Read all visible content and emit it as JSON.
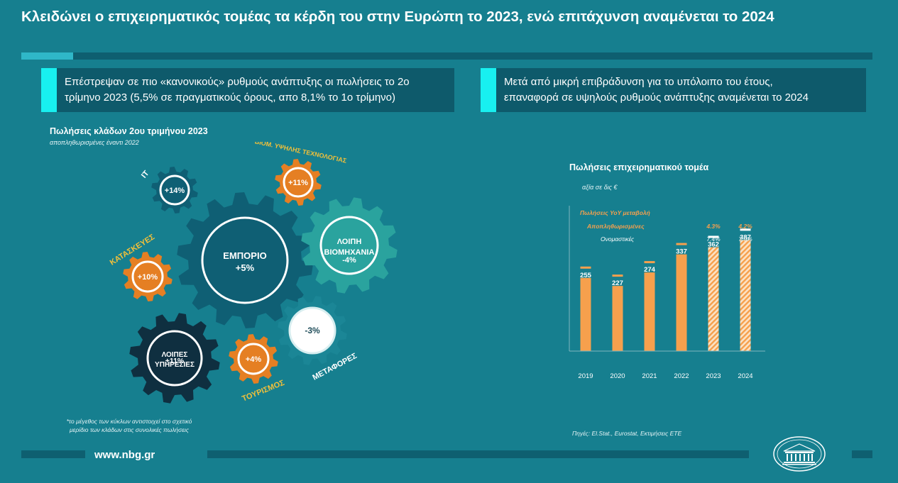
{
  "title": "Κλειδώνει ο επιχειρηματικός τομέας τα κέρδη του στην Ευρώπη το 2023, ενώ επιτάχυνση αναμένεται το 2024",
  "banner_left": {
    "line1": "Επέστρεψαν σε πιο «κανονικούς» ρυθμούς ανάπτυξης οι πωλήσεις το 2ο",
    "line2": "τρίμηνο 2023 (5,5% σε πραγματικούς όρους, απο 8,1% το 1ο τρίμηνο)"
  },
  "banner_right": {
    "line1": "Μετά από μικρή επιβράδυνση για το υπόλοιπο του έτους,",
    "line2": "επαναφορά σε υψηλούς ρυθμούς ανάπτυξης αναμένεται το 2024"
  },
  "gears_chart": {
    "title": "Πωλήσεις κλάδων 2ου τριμήνου 2023",
    "subtitle": "αποπληθωρισμένες έναντι 2022",
    "footnote_line1": "*το μέγεθος των κύκλων αντιστοιχεί στο σχετικό",
    "footnote_line2": "μερίδιο των κλάδων στις συνολικές πωλήσεις",
    "colors": {
      "dark_navy": "#0f2f40",
      "teal_dark": "#0f5f74",
      "teal_green": "#2aa39e",
      "orange": "#e57f23",
      "light": "#1b8696"
    }
  },
  "chart_data": {
    "type": "bar",
    "title": "Πωλήσεις επιχειρηματικού τομέα",
    "unit_label": "αξία σε δις €",
    "categories": [
      "2019",
      "2020",
      "2021",
      "2022",
      "2023",
      "2024"
    ],
    "values": [
      255,
      227,
      274,
      337,
      362,
      387
    ],
    "forecast": [
      false,
      false,
      false,
      false,
      true,
      true
    ],
    "ylim": [
      0,
      420
    ],
    "yoy_header": "Πωλήσεις YoY μεταβολή",
    "real_label": "Αποπληθωρισμένες",
    "nominal_label": "Ονομαστικές",
    "yoy_real": [
      "",
      "",
      "",
      "",
      "4.3%",
      "4.2%"
    ],
    "yoy_nominal": [
      "",
      "",
      "",
      "",
      "7.4%",
      "7.0%"
    ],
    "bar_color": "#f6a04d",
    "source": "Πηγές: El.Stat., Eurostat,  Εκτιμήσεις ΕΤΕ"
  },
  "footer": {
    "url": "www.nbg.gr"
  }
}
